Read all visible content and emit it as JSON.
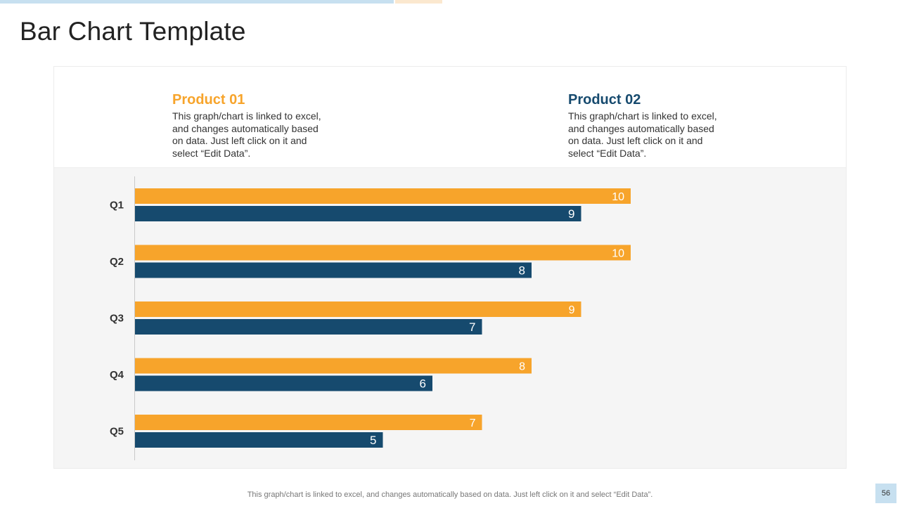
{
  "title": "Bar Chart Template",
  "colors": {
    "product1": "#f7a42b",
    "product2": "#164a6e",
    "axis": "#c9c9c9",
    "category_text": "#333333"
  },
  "legend": [
    {
      "title": "Product 01",
      "color": "#f7a42b",
      "description": "This graph/chart is linked to excel, and changes automatically based on data. Just left click on it and select “Edit Data”."
    },
    {
      "title": "Product 02",
      "color": "#164a6e",
      "description": "This graph/chart is linked to excel, and changes automatically based on data. Just left click on it and select “Edit Data”."
    }
  ],
  "chart_data": {
    "type": "bar",
    "orientation": "horizontal",
    "categories": [
      "Q1",
      "Q2",
      "Q3",
      "Q4",
      "Q5"
    ],
    "series": [
      {
        "name": "Product 01",
        "values": [
          10,
          10,
          9,
          8,
          7
        ]
      },
      {
        "name": "Product 02",
        "values": [
          9,
          8,
          7,
          6,
          5
        ]
      }
    ],
    "xlim": [
      0,
      14
    ],
    "data_labels": true,
    "title": "",
    "xlabel": "",
    "ylabel": ""
  },
  "footer": "This graph/chart is linked to excel,  and changes automatically based on data. Just left click on it and select “Edit Data”.",
  "page_number": "56"
}
